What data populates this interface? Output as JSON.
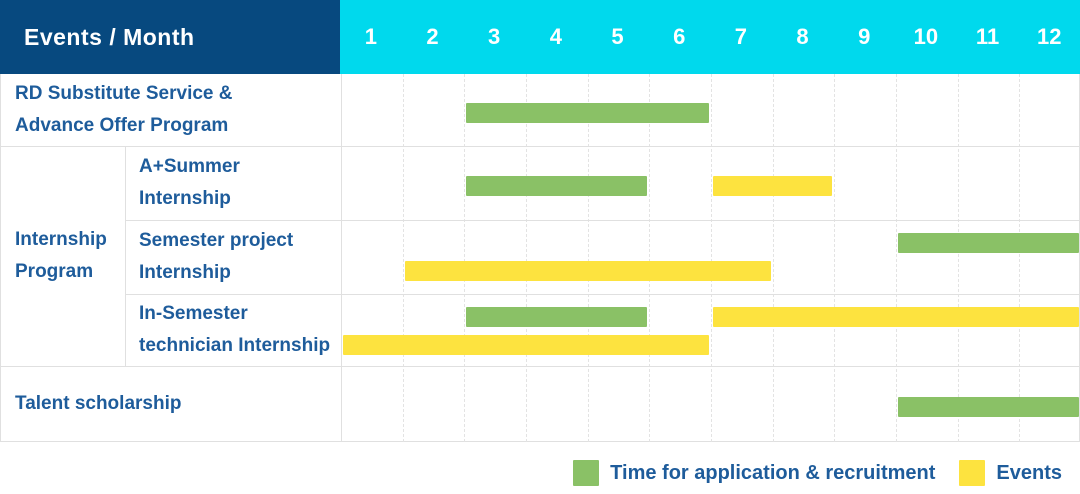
{
  "title": "Events / Month",
  "colors": {
    "header_navy": "#07497f",
    "header_cyan": "#00d9ed",
    "application_green": "#8ac166",
    "event_yellow": "#fde33f",
    "label_blue": "#1e5c9b",
    "grid_gray": "#e3e3e3"
  },
  "chart_data": {
    "type": "gantt",
    "corner_label": "Events / Month",
    "x_axis": {
      "unit": "month",
      "ticks": [
        "1",
        "2",
        "3",
        "4",
        "5",
        "6",
        "7",
        "8",
        "9",
        "10",
        "11",
        "12"
      ],
      "range": [
        1,
        12
      ]
    },
    "legend": [
      {
        "key": "application",
        "label": "Time for application & recruitment",
        "color": "#8ac166"
      },
      {
        "key": "event",
        "label": "Events",
        "color": "#fde33f"
      }
    ],
    "group_label": "Internship Program",
    "group_label_lines": [
      "Internship",
      "Program"
    ],
    "rows": [
      {
        "group": "",
        "label": "RD Substitute Service & Advance Offer Program",
        "label_lines": [
          "RD Substitute Service &",
          "Advance Offer Program"
        ],
        "bars": [
          {
            "series": "application",
            "start_month": 3,
            "end_month": 6,
            "lane": "center"
          }
        ]
      },
      {
        "group": "Internship Program",
        "label": "A+Summer Internship",
        "label_lines": [
          "A+Summer",
          "Internship"
        ],
        "bars": [
          {
            "series": "application",
            "start_month": 3,
            "end_month": 5,
            "lane": "center"
          },
          {
            "series": "event",
            "start_month": 7,
            "end_month": 8,
            "lane": "center"
          }
        ]
      },
      {
        "group": "Internship Program",
        "label": "Semester project Internship",
        "label_lines": [
          "Semester project",
          "Internship"
        ],
        "bars": [
          {
            "series": "application",
            "start_month": 10,
            "end_month": 12,
            "lane": "top"
          },
          {
            "series": "event",
            "start_month": 2,
            "end_month": 7,
            "lane": "bottom"
          }
        ]
      },
      {
        "group": "Internship Program",
        "label": "In-Semester technician Internship",
        "label_lines": [
          "In-Semester",
          "technician Internship"
        ],
        "bars": [
          {
            "series": "application",
            "start_month": 3,
            "end_month": 5,
            "lane": "top"
          },
          {
            "series": "event",
            "start_month": 7,
            "end_month": 12,
            "lane": "top"
          },
          {
            "series": "event",
            "start_month": 1,
            "end_month": 6,
            "lane": "bottom"
          }
        ]
      },
      {
        "group": "",
        "label": "Talent scholarship",
        "label_lines": [
          "Talent scholarship"
        ],
        "bars": [
          {
            "series": "application",
            "start_month": 10,
            "end_month": 12,
            "lane": "center"
          }
        ]
      }
    ]
  }
}
